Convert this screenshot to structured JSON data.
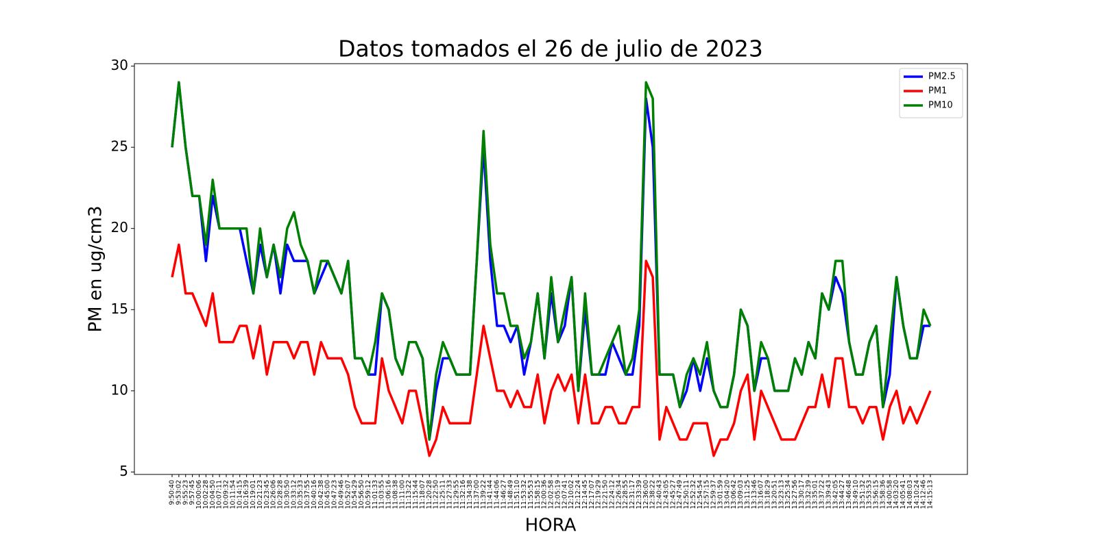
{
  "chart_data": {
    "type": "line",
    "title": "Datos tomados el 26 de julio de 2023",
    "x_label": "HORA",
    "y_label": "PM en ug/cm3",
    "categories": [
      "9:50:40",
      "9:53:02",
      "9:55:23",
      "9:57:45",
      "10:00:06",
      "10:02:28",
      "10:04:50",
      "10:07:11",
      "10:09:32",
      "10:11:54",
      "10:14:15",
      "10:16:39",
      "10:19:01",
      "10:21:23",
      "10:23:45",
      "10:26:06",
      "10:28:28",
      "10:30:50",
      "10:33:12",
      "10:35:33",
      "10:37:55",
      "10:40:16",
      "10:42:38",
      "10:45:00",
      "10:47:23",
      "10:49:46",
      "10:52:07",
      "10:54:29",
      "10:56:50",
      "10:59:12",
      "11:01:33",
      "11:03:55",
      "11:06:16",
      "11:08:38",
      "11:11:00",
      "11:13:22",
      "11:15:44",
      "11:18:07",
      "11:20:28",
      "11:22:50",
      "11:25:11",
      "11:27:33",
      "11:29:55",
      "11:32:16",
      "11:34:38",
      "11:37:00",
      "11:39:22",
      "11:41:44",
      "11:44:06",
      "11:46:27",
      "11:48:49",
      "11:51:10",
      "11:53:32",
      "11:55:53",
      "11:58:15",
      "12:00:36",
      "12:02:58",
      "12:05:19",
      "12:07:41",
      "12:10:02",
      "12:12:24",
      "12:14:45",
      "12:17:07",
      "12:19:29",
      "12:21:50",
      "12:24:12",
      "12:26:34",
      "12:28:55",
      "12:31:17",
      "12:33:39",
      "12:36:00",
      "12:38:22",
      "12:40:43",
      "12:43:05",
      "12:45:27",
      "12:47:49",
      "12:50:11",
      "12:52:32",
      "12:54:54",
      "12:57:15",
      "12:59:37",
      "13:01:59",
      "13:04:20",
      "13:06:42",
      "13:09:03",
      "13:11:25",
      "13:13:46",
      "13:16:07",
      "13:18:29",
      "13:20:51",
      "13:23:13",
      "13:25:34",
      "13:27:56",
      "13:30:17",
      "13:32:39",
      "13:35:01",
      "13:37:22",
      "13:39:43",
      "13:42:05",
      "13:44:27",
      "13:46:48",
      "13:49:10",
      "13:51:32",
      "13:53:53",
      "13:56:15",
      "13:58:36",
      "14:00:58",
      "14:03:20",
      "14:05:41",
      "14:08:03",
      "14:10:24",
      "14:12:46",
      "14:15:13"
    ],
    "series": [
      {
        "name": "PM2.5",
        "color": "#0000ff",
        "values": [
          25,
          29,
          25,
          22,
          22,
          18,
          22,
          20,
          20,
          20,
          20,
          18,
          16,
          19,
          17,
          19,
          16,
          19,
          18,
          18,
          18,
          16,
          17,
          18,
          17,
          16,
          18,
          12,
          12,
          11,
          11,
          16,
          15,
          12,
          11,
          13,
          13,
          12,
          7,
          10,
          12,
          12,
          11,
          11,
          11,
          18,
          25,
          18,
          14,
          14,
          13,
          14,
          11,
          13,
          16,
          12,
          16,
          13,
          14,
          17,
          10,
          15,
          11,
          11,
          11,
          13,
          12,
          11,
          11,
          14,
          28,
          25,
          11,
          11,
          11,
          9,
          10,
          12,
          10,
          12,
          10,
          9,
          9,
          11,
          15,
          14,
          10,
          12,
          12,
          10,
          10,
          10,
          12,
          11,
          13,
          12,
          16,
          15,
          17,
          16,
          13,
          11,
          11,
          13,
          14,
          9,
          11,
          17,
          14,
          12,
          12,
          14,
          14
        ]
      },
      {
        "name": "PM1",
        "color": "#ff0000",
        "values": [
          17,
          19,
          16,
          16,
          15,
          14,
          16,
          13,
          13,
          13,
          14,
          14,
          12,
          14,
          11,
          13,
          13,
          13,
          12,
          13,
          13,
          11,
          13,
          12,
          12,
          12,
          11,
          9,
          8,
          8,
          8,
          12,
          10,
          9,
          8,
          10,
          10,
          8,
          6,
          7,
          9,
          8,
          8,
          8,
          8,
          11,
          14,
          12,
          10,
          10,
          9,
          10,
          9,
          9,
          11,
          8,
          10,
          11,
          10,
          11,
          8,
          11,
          8,
          8,
          9,
          9,
          8,
          8,
          9,
          9,
          18,
          17,
          7,
          9,
          8,
          7,
          7,
          8,
          8,
          8,
          6,
          7,
          7,
          8,
          10,
          11,
          7,
          10,
          9,
          8,
          7,
          7,
          7,
          8,
          9,
          9,
          11,
          9,
          12,
          12,
          9,
          9,
          8,
          9,
          9,
          7,
          9,
          10,
          8,
          9,
          8,
          9,
          10
        ]
      },
      {
        "name": "PM10",
        "color": "#008000",
        "values": [
          25,
          29,
          25,
          22,
          22,
          19,
          23,
          20,
          20,
          20,
          20,
          20,
          16,
          20,
          17,
          19,
          17,
          20,
          21,
          19,
          18,
          16,
          18,
          18,
          17,
          16,
          18,
          12,
          12,
          11,
          13,
          16,
          15,
          12,
          11,
          13,
          13,
          12,
          7,
          11,
          13,
          12,
          11,
          11,
          11,
          18,
          26,
          19,
          16,
          16,
          14,
          14,
          12,
          13,
          16,
          12,
          17,
          13,
          15,
          17,
          10,
          16,
          11,
          11,
          12,
          13,
          14,
          11,
          12,
          15,
          29,
          28,
          11,
          11,
          11,
          9,
          11,
          12,
          11,
          13,
          10,
          9,
          9,
          11,
          15,
          14,
          10,
          13,
          12,
          10,
          10,
          10,
          12,
          11,
          13,
          12,
          16,
          15,
          18,
          18,
          13,
          11,
          11,
          13,
          14,
          9,
          13,
          17,
          14,
          12,
          12,
          15,
          14
        ]
      }
    ],
    "ylim": [
      4.85,
      30.15
    ],
    "yticks": [
      5,
      10,
      15,
      20,
      25,
      30
    ],
    "legend": "upper right"
  }
}
